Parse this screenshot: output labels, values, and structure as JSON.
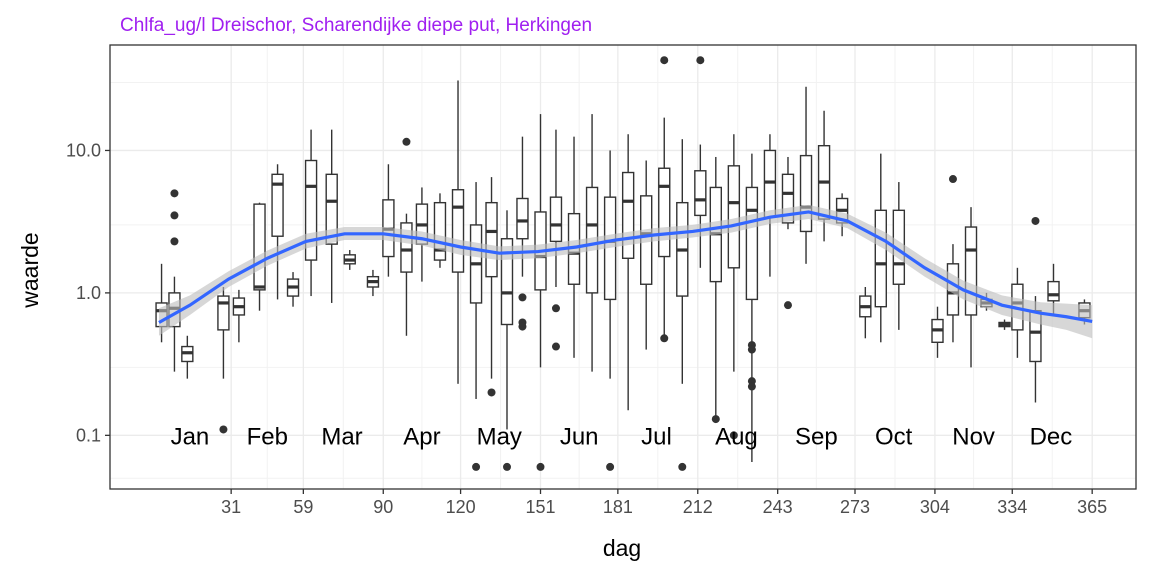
{
  "chart_data": {
    "type": "boxplot",
    "title": "Chlfa_ug/l Dreischor, Scharendijke diepe put, Herkingen",
    "xlabel": "dag",
    "ylabel": "waarde",
    "y_scale": "log10",
    "xlim": [
      -16,
      382
    ],
    "ylim": [
      0.042,
      55
    ],
    "x_ticks": [
      31,
      59,
      90,
      120,
      151,
      181,
      212,
      243,
      273,
      304,
      334,
      365
    ],
    "y_ticks": [
      0.1,
      1.0,
      10.0
    ],
    "y_tick_labels": [
      "0.1",
      "1.0",
      "10.0"
    ],
    "grid": true,
    "month_labels": [
      {
        "label": "Jan",
        "x": 15,
        "y": 0.1
      },
      {
        "label": "Feb",
        "x": 45,
        "y": 0.1
      },
      {
        "label": "Mar",
        "x": 74,
        "y": 0.1
      },
      {
        "label": "Apr",
        "x": 105,
        "y": 0.1
      },
      {
        "label": "May",
        "x": 135,
        "y": 0.1
      },
      {
        "label": "Jun",
        "x": 166,
        "y": 0.1
      },
      {
        "label": "Jul",
        "x": 196,
        "y": 0.1
      },
      {
        "label": "Aug",
        "x": 227,
        "y": 0.1
      },
      {
        "label": "Sep",
        "x": 258,
        "y": 0.1
      },
      {
        "label": "Oct",
        "x": 288,
        "y": 0.1
      },
      {
        "label": "Nov",
        "x": 319,
        "y": 0.1
      },
      {
        "label": "Dec",
        "x": 349,
        "y": 0.1
      }
    ],
    "boxes": [
      {
        "x": 4,
        "lo": 0.45,
        "q1": 0.58,
        "med": 0.75,
        "q3": 0.85,
        "hi": 1.6,
        "out": []
      },
      {
        "x": 9,
        "lo": 0.28,
        "q1": 0.58,
        "med": 0.78,
        "q3": 1.0,
        "hi": 1.3,
        "out": [
          5.0,
          3.5,
          2.3
        ]
      },
      {
        "x": 14,
        "lo": 0.25,
        "q1": 0.33,
        "med": 0.38,
        "q3": 0.42,
        "hi": 0.5,
        "out": []
      },
      {
        "x": 28,
        "lo": 0.25,
        "q1": 0.55,
        "med": 0.85,
        "q3": 0.95,
        "hi": 1.1,
        "out": [
          0.11
        ]
      },
      {
        "x": 34,
        "lo": 0.45,
        "q1": 0.7,
        "med": 0.8,
        "q3": 0.92,
        "hi": 1.05,
        "out": []
      },
      {
        "x": 42,
        "lo": 0.75,
        "q1": 1.05,
        "med": 1.1,
        "q3": 4.2,
        "hi": 4.3,
        "out": []
      },
      {
        "x": 49,
        "lo": 0.9,
        "q1": 2.5,
        "med": 5.8,
        "q3": 6.8,
        "hi": 8.0,
        "out": []
      },
      {
        "x": 55,
        "lo": 0.8,
        "q1": 0.95,
        "med": 1.1,
        "q3": 1.25,
        "hi": 1.4,
        "out": []
      },
      {
        "x": 62,
        "lo": 0.95,
        "q1": 1.7,
        "med": 5.6,
        "q3": 8.5,
        "hi": 14.0,
        "out": []
      },
      {
        "x": 70,
        "lo": 0.85,
        "q1": 2.2,
        "med": 4.4,
        "q3": 6.8,
        "hi": 14.0,
        "out": []
      },
      {
        "x": 77,
        "lo": 1.45,
        "q1": 1.6,
        "med": 1.7,
        "q3": 1.85,
        "hi": 2.0,
        "out": []
      },
      {
        "x": 86,
        "lo": 0.95,
        "q1": 1.1,
        "med": 1.2,
        "q3": 1.3,
        "hi": 1.45,
        "out": []
      },
      {
        "x": 92,
        "lo": 1.3,
        "q1": 1.8,
        "med": 2.8,
        "q3": 4.5,
        "hi": 8.0,
        "out": []
      },
      {
        "x": 99,
        "lo": 0.5,
        "q1": 1.4,
        "med": 2.0,
        "q3": 3.1,
        "hi": 3.6,
        "out": [
          11.5
        ]
      },
      {
        "x": 105,
        "lo": 1.2,
        "q1": 2.2,
        "med": 3.0,
        "q3": 4.2,
        "hi": 5.5,
        "out": []
      },
      {
        "x": 112,
        "lo": 1.5,
        "q1": 1.7,
        "med": 2.0,
        "q3": 4.3,
        "hi": 5.0,
        "out": []
      },
      {
        "x": 119,
        "lo": 0.23,
        "q1": 1.4,
        "med": 4.0,
        "q3": 5.3,
        "hi": 31.0,
        "out": []
      },
      {
        "x": 126,
        "lo": 0.18,
        "q1": 0.85,
        "med": 1.6,
        "q3": 3.0,
        "hi": 6.0,
        "out": [
          0.06
        ]
      },
      {
        "x": 132,
        "lo": 0.25,
        "q1": 1.3,
        "med": 2.7,
        "q3": 4.3,
        "hi": 6.5,
        "out": [
          0.2
        ]
      },
      {
        "x": 138,
        "lo": 0.11,
        "q1": 0.6,
        "med": 1.0,
        "q3": 2.4,
        "hi": 3.8,
        "out": [
          0.06
        ]
      },
      {
        "x": 144,
        "lo": 1.3,
        "q1": 2.4,
        "med": 3.2,
        "q3": 4.6,
        "hi": 12.5,
        "out": [
          0.93,
          0.62,
          0.58
        ]
      },
      {
        "x": 151,
        "lo": 0.3,
        "q1": 1.05,
        "med": 1.8,
        "q3": 3.7,
        "hi": 18.0,
        "out": [
          0.06
        ]
      },
      {
        "x": 157,
        "lo": 1.1,
        "q1": 2.3,
        "med": 3.0,
        "q3": 4.7,
        "hi": 14.0,
        "out": [
          0.78,
          0.42
        ]
      },
      {
        "x": 164,
        "lo": 0.35,
        "q1": 1.15,
        "med": 1.9,
        "q3": 3.6,
        "hi": 12.5,
        "out": []
      },
      {
        "x": 171,
        "lo": 0.28,
        "q1": 1.0,
        "med": 3.0,
        "q3": 5.5,
        "hi": 18.0,
        "out": []
      },
      {
        "x": 178,
        "lo": 0.25,
        "q1": 0.9,
        "med": 2.3,
        "q3": 4.7,
        "hi": 10.0,
        "out": [
          0.06
        ]
      },
      {
        "x": 185,
        "lo": 0.15,
        "q1": 1.75,
        "med": 4.4,
        "q3": 7.0,
        "hi": 13.0,
        "out": []
      },
      {
        "x": 192,
        "lo": 0.4,
        "q1": 1.15,
        "med": 2.6,
        "q3": 4.8,
        "hi": 8.5,
        "out": []
      },
      {
        "x": 199,
        "lo": 0.48,
        "q1": 1.8,
        "med": 5.6,
        "q3": 7.5,
        "hi": 17.0,
        "out": [
          0.48,
          43.0
        ]
      },
      {
        "x": 206,
        "lo": 0.23,
        "q1": 0.95,
        "med": 2.0,
        "q3": 4.3,
        "hi": 12.0,
        "out": [
          0.06
        ]
      },
      {
        "x": 213,
        "lo": 1.5,
        "q1": 3.5,
        "med": 4.5,
        "q3": 7.2,
        "hi": 11.0,
        "out": [
          43.0
        ]
      },
      {
        "x": 219,
        "lo": 0.13,
        "q1": 1.2,
        "med": 2.6,
        "q3": 5.5,
        "hi": 9.0,
        "out": [
          0.13
        ]
      },
      {
        "x": 226,
        "lo": 0.28,
        "q1": 1.5,
        "med": 4.3,
        "q3": 7.8,
        "hi": 13.0,
        "out": [
          0.1
        ]
      },
      {
        "x": 233,
        "lo": 0.065,
        "q1": 0.9,
        "med": 3.8,
        "q3": 5.5,
        "hi": 9.5,
        "out": [
          0.43,
          0.4,
          0.24,
          0.22
        ]
      },
      {
        "x": 240,
        "lo": 1.3,
        "q1": 3.4,
        "med": 6.0,
        "q3": 10.0,
        "hi": 13.0,
        "out": []
      },
      {
        "x": 247,
        "lo": 2.8,
        "q1": 3.1,
        "med": 5.0,
        "q3": 6.8,
        "hi": 9.0,
        "out": [
          0.82
        ]
      },
      {
        "x": 254,
        "lo": 1.6,
        "q1": 2.7,
        "med": 4.0,
        "q3": 9.2,
        "hi": 28.0,
        "out": []
      },
      {
        "x": 261,
        "lo": 2.3,
        "q1": 3.3,
        "med": 6.0,
        "q3": 10.8,
        "hi": 19.0,
        "out": []
      },
      {
        "x": 268,
        "lo": 2.5,
        "q1": 3.1,
        "med": 3.8,
        "q3": 4.6,
        "hi": 5.0,
        "out": []
      },
      {
        "x": 277,
        "lo": 0.48,
        "q1": 0.68,
        "med": 0.8,
        "q3": 0.95,
        "hi": 1.1,
        "out": []
      },
      {
        "x": 283,
        "lo": 0.45,
        "q1": 0.8,
        "med": 1.6,
        "q3": 3.8,
        "hi": 9.5,
        "out": []
      },
      {
        "x": 290,
        "lo": 0.55,
        "q1": 1.15,
        "med": 1.6,
        "q3": 3.8,
        "hi": 6.0,
        "out": []
      },
      {
        "x": 305,
        "lo": 0.35,
        "q1": 0.45,
        "med": 0.55,
        "q3": 0.65,
        "hi": 0.8,
        "out": []
      },
      {
        "x": 311,
        "lo": 0.45,
        "q1": 0.7,
        "med": 1.0,
        "q3": 1.6,
        "hi": 2.2,
        "out": [
          6.3
        ]
      },
      {
        "x": 318,
        "lo": 0.3,
        "q1": 0.7,
        "med": 2.0,
        "q3": 2.9,
        "hi": 4.0,
        "out": []
      },
      {
        "x": 324,
        "lo": 0.75,
        "q1": 0.8,
        "med": 0.85,
        "q3": 0.9,
        "hi": 1.0,
        "out": []
      },
      {
        "x": 331,
        "lo": 0.55,
        "q1": 0.58,
        "med": 0.6,
        "q3": 0.62,
        "hi": 0.65,
        "out": []
      },
      {
        "x": 336,
        "lo": 0.35,
        "q1": 0.55,
        "med": 0.85,
        "q3": 1.15,
        "hi": 1.5,
        "out": []
      },
      {
        "x": 343,
        "lo": 0.17,
        "q1": 0.33,
        "med": 0.53,
        "q3": 0.75,
        "hi": 0.95,
        "out": [
          3.2
        ]
      },
      {
        "x": 350,
        "lo": 0.7,
        "q1": 0.88,
        "med": 0.97,
        "q3": 1.2,
        "hi": 1.6,
        "out": []
      },
      {
        "x": 362,
        "lo": 0.6,
        "q1": 0.67,
        "med": 0.75,
        "q3": 0.85,
        "hi": 0.9,
        "out": []
      }
    ],
    "smooth_line": {
      "color": "#3366ff",
      "ribbon_color": "#bdbdbd",
      "points": [
        {
          "x": 3,
          "y": 0.62,
          "lo": 0.5,
          "hi": 0.78
        },
        {
          "x": 15,
          "y": 0.82,
          "lo": 0.7,
          "hi": 0.96
        },
        {
          "x": 30,
          "y": 1.25,
          "lo": 1.1,
          "hi": 1.42
        },
        {
          "x": 45,
          "y": 1.75,
          "lo": 1.55,
          "hi": 1.98
        },
        {
          "x": 60,
          "y": 2.3,
          "lo": 2.05,
          "hi": 2.6
        },
        {
          "x": 75,
          "y": 2.6,
          "lo": 2.35,
          "hi": 2.9
        },
        {
          "x": 90,
          "y": 2.6,
          "lo": 2.35,
          "hi": 2.9
        },
        {
          "x": 105,
          "y": 2.4,
          "lo": 2.15,
          "hi": 2.7
        },
        {
          "x": 120,
          "y": 2.1,
          "lo": 1.85,
          "hi": 2.35
        },
        {
          "x": 135,
          "y": 1.9,
          "lo": 1.7,
          "hi": 2.12
        },
        {
          "x": 150,
          "y": 1.95,
          "lo": 1.75,
          "hi": 2.18
        },
        {
          "x": 165,
          "y": 2.1,
          "lo": 1.9,
          "hi": 2.35
        },
        {
          "x": 180,
          "y": 2.35,
          "lo": 2.1,
          "hi": 2.6
        },
        {
          "x": 195,
          "y": 2.55,
          "lo": 2.3,
          "hi": 2.85
        },
        {
          "x": 210,
          "y": 2.7,
          "lo": 2.45,
          "hi": 3.0
        },
        {
          "x": 225,
          "y": 2.95,
          "lo": 2.65,
          "hi": 3.3
        },
        {
          "x": 240,
          "y": 3.4,
          "lo": 3.05,
          "hi": 3.8
        },
        {
          "x": 255,
          "y": 3.7,
          "lo": 3.3,
          "hi": 4.15
        },
        {
          "x": 270,
          "y": 3.2,
          "lo": 2.85,
          "hi": 3.6
        },
        {
          "x": 285,
          "y": 2.3,
          "lo": 2.0,
          "hi": 2.65
        },
        {
          "x": 300,
          "y": 1.5,
          "lo": 1.3,
          "hi": 1.75
        },
        {
          "x": 315,
          "y": 1.05,
          "lo": 0.9,
          "hi": 1.22
        },
        {
          "x": 330,
          "y": 0.82,
          "lo": 0.7,
          "hi": 0.96
        },
        {
          "x": 345,
          "y": 0.72,
          "lo": 0.6,
          "hi": 0.86
        },
        {
          "x": 355,
          "y": 0.68,
          "lo": 0.55,
          "hi": 0.84
        },
        {
          "x": 365,
          "y": 0.63,
          "lo": 0.48,
          "hi": 0.82
        }
      ]
    }
  }
}
